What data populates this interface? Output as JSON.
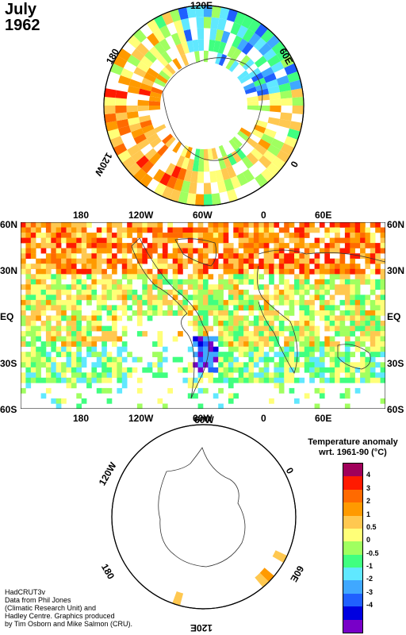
{
  "title": {
    "month": "July",
    "year": "1962"
  },
  "north_polar": {
    "labels": {
      "top": "120E",
      "left": "180",
      "right": "60E",
      "lower_right": "0",
      "lower_left": "120W"
    }
  },
  "world_map": {
    "top_lon_labels": [
      "180",
      "120W",
      "60W",
      "0",
      "60E"
    ],
    "bottom_lon_labels": [
      "180",
      "120W",
      "60W",
      "0",
      "60E"
    ],
    "lat_labels": [
      "60N",
      "30N",
      "EQ",
      "30S",
      "60S"
    ]
  },
  "south_polar": {
    "labels": {
      "top": "60W",
      "left": "120W",
      "right": "0",
      "lower_left": "180",
      "lower_right": "60E",
      "bottom": "120E"
    }
  },
  "legend": {
    "title_line1": "Temperature anomaly",
    "title_line2": "wrt. 1961-90  (°C)",
    "labels": [
      "4",
      "3",
      "2",
      "1",
      "0.5",
      "0",
      "-0.5",
      "-1",
      "-2",
      "-3",
      "-4"
    ],
    "colors": [
      "#a0005a",
      "#ff1a00",
      "#ff6a00",
      "#ff9a00",
      "#ffc850",
      "#ffff78",
      "#a0ff60",
      "#40ff80",
      "#60e8ff",
      "#40a8ff",
      "#2060ff",
      "#0000e0",
      "#7800c8"
    ]
  },
  "credits": [
    "HadCRUT3v",
    "Data from Phil Jones",
    "(Climatic Research Unit) and",
    "Hadley Centre.  Graphics produced",
    "by Tim Osborn and Mike Salmon (CRU)."
  ]
}
